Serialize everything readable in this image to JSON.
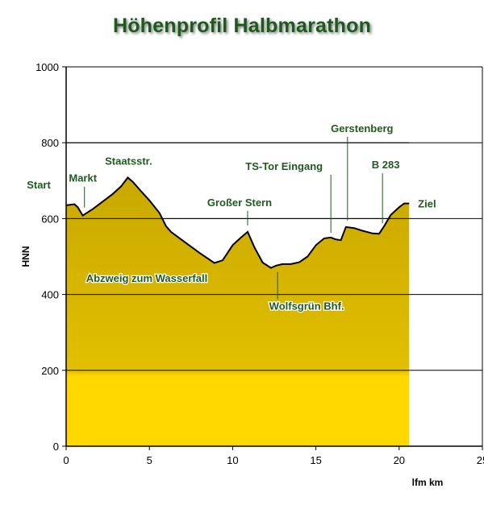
{
  "chart_data": {
    "type": "area",
    "title": "Höhenprofil Halbmarathon",
    "xlabel": "lfm km",
    "ylabel": "HNN",
    "xlim": [
      0,
      25
    ],
    "ylim": [
      0,
      1000
    ],
    "xticks": [
      0,
      5,
      10,
      15,
      20,
      25
    ],
    "yticks": [
      0,
      200,
      400,
      600,
      800,
      1000
    ],
    "grid": "horizontal",
    "colors": {
      "area_top": "#c9a800",
      "area_bottom": "#ffd800",
      "line": "#000000",
      "annotation": "#1f5a1f",
      "title": "#1e5a1e"
    },
    "x": [
      0,
      0.5,
      0.7,
      1.0,
      1.2,
      1.6,
      2.2,
      2.8,
      3.3,
      3.7,
      4.0,
      4.5,
      5.0,
      5.6,
      6.0,
      6.3,
      7.0,
      8.0,
      8.9,
      9.4,
      10.0,
      10.5,
      10.9,
      11.3,
      11.8,
      12.3,
      12.6,
      13.0,
      13.5,
      14.0,
      14.5,
      15.0,
      15.5,
      15.9,
      16.2,
      16.5,
      16.8,
      17.3,
      17.8,
      18.4,
      18.8,
      19.1,
      19.5,
      20.0,
      20.3,
      20.6
    ],
    "y": [
      635,
      638,
      630,
      608,
      614,
      625,
      645,
      665,
      685,
      708,
      697,
      672,
      648,
      615,
      580,
      565,
      542,
      510,
      483,
      490,
      530,
      550,
      565,
      525,
      484,
      470,
      476,
      480,
      480,
      485,
      500,
      530,
      548,
      550,
      545,
      543,
      578,
      575,
      568,
      561,
      560,
      580,
      610,
      630,
      640,
      640
    ],
    "annotations": [
      {
        "label": "Start",
        "x": 0,
        "y": 635
      },
      {
        "label": "Markt",
        "x": 1.1,
        "y": 612
      },
      {
        "label": "Staatsstr.",
        "x": 3.7,
        "y": 708
      },
      {
        "label": "Großer Stern",
        "x": 10.9,
        "y": 565
      },
      {
        "label": "Abzweig zum Wasserfall",
        "x": 9.3,
        "y": 486
      },
      {
        "label": "Wolfsgrün Bhf.",
        "x": 12.7,
        "y": 472
      },
      {
        "label": "TS-Tor Eingang",
        "x": 15.9,
        "y": 550
      },
      {
        "label": "Gerstenberg",
        "x": 16.9,
        "y": 578
      },
      {
        "label": "B 283",
        "x": 19.0,
        "y": 575
      },
      {
        "label": "Ziel",
        "x": 20.6,
        "y": 640
      }
    ]
  }
}
